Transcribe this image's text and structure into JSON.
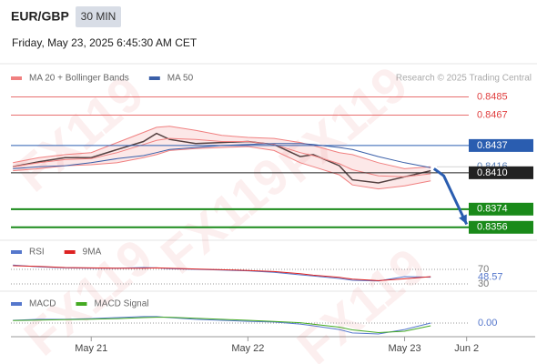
{
  "header": {
    "symbol": "EUR/GBP",
    "timeframe": "30 MIN",
    "date": "Friday, May 23, 2025 6:45:30 AM CET",
    "credit": "Research © 2025 Trading Central",
    "watermark": "FX119"
  },
  "chart_data": [
    {
      "type": "line",
      "x": [
        -12,
        -8,
        -4,
        0,
        4,
        8,
        10,
        12,
        16,
        20,
        24,
        28,
        32,
        34,
        38,
        40,
        44,
        48,
        52
      ],
      "xlim": [
        -12.3,
        68
      ],
      "ylim": [
        0.8345,
        0.8518
      ],
      "series": [
        {
          "color": "#333333",
          "values": [
            0.8416,
            0.8421,
            0.8425,
            0.8425,
            0.8433,
            0.8441,
            0.8449,
            0.8443,
            0.8439,
            0.844,
            0.8441,
            0.8438,
            0.8426,
            0.8428,
            0.8417,
            0.8403,
            0.84,
            0.8406,
            0.8412
          ]
        },
        {
          "name": "MA 20 + Bollinger Bands",
          "color": "#f08080",
          "values": [
            0.8416,
            0.842,
            0.8423,
            0.8424,
            0.843,
            0.8438,
            0.8442,
            0.8444,
            0.8443,
            0.8441,
            0.8441,
            0.8438,
            0.843,
            0.8427,
            0.8419,
            0.8413,
            0.8407,
            0.8406,
            0.8409
          ],
          "upper": [
            0.842,
            0.8425,
            0.8428,
            0.843,
            0.844,
            0.845,
            0.8455,
            0.8456,
            0.8452,
            0.8447,
            0.8445,
            0.8444,
            0.844,
            0.8437,
            0.843,
            0.8428,
            0.842,
            0.8414,
            0.8416
          ],
          "lower": [
            0.8412,
            0.8414,
            0.8417,
            0.8418,
            0.842,
            0.8425,
            0.8428,
            0.8432,
            0.8434,
            0.8435,
            0.8436,
            0.8432,
            0.842,
            0.8416,
            0.8408,
            0.8398,
            0.8394,
            0.8397,
            0.8402
          ]
        },
        {
          "name": "MA 50",
          "color": "#3a5fa8",
          "values": [
            0.8414,
            0.8416,
            0.8417,
            0.842,
            0.8424,
            0.8427,
            0.843,
            0.8433,
            0.8435,
            0.8437,
            0.8438,
            0.8439,
            0.8439,
            0.8438,
            0.8435,
            0.8433,
            0.8426,
            0.842,
            0.8415
          ]
        }
      ],
      "levels": [
        {
          "value": 0.8485,
          "color": "#e04040",
          "style": "line"
        },
        {
          "value": 0.8467,
          "color": "#e04040",
          "style": "line"
        },
        {
          "value": 0.8437,
          "color": "#2a5db0",
          "style": "box"
        },
        {
          "value": 0.8416,
          "color": "#5a7fb5",
          "style": "text"
        },
        {
          "value": 0.841,
          "label": "0.8410",
          "color": "#222222",
          "style": "box"
        },
        {
          "value": 0.8374,
          "color": "#1a8a1a",
          "style": "box"
        },
        {
          "value": 0.8356,
          "color": "#1a8a1a",
          "style": "box"
        }
      ],
      "forecast": {
        "x": [
          52.5,
          54,
          57.5
        ],
        "values": [
          0.8414,
          0.8407,
          0.8359
        ],
        "color": "#2a5db0"
      }
    },
    {
      "type": "line",
      "x": [
        -12,
        -8,
        -4,
        0,
        4,
        8,
        10,
        12,
        16,
        20,
        24,
        28,
        32,
        34,
        38,
        40,
        44,
        48,
        52
      ],
      "xlim": [
        -12.3,
        68
      ],
      "ylim": [
        15,
        97.5
      ],
      "yticks": [
        30,
        70
      ],
      "series": [
        {
          "name": "RSI",
          "color": "#5577cc",
          "values": [
            82,
            77,
            74,
            73,
            73,
            75,
            74,
            72,
            70,
            68,
            66,
            62,
            55,
            52,
            45,
            40,
            38,
            50,
            48.57
          ]
        },
        {
          "name": "9MA",
          "color": "#dd2222",
          "values": [
            80,
            78,
            75,
            74,
            73,
            73,
            74,
            73,
            71,
            69,
            67,
            64,
            58,
            54,
            48,
            43,
            39,
            44,
            50
          ]
        }
      ]
    },
    {
      "type": "line",
      "x": [
        -12,
        -8,
        -4,
        0,
        4,
        8,
        10,
        12,
        16,
        20,
        24,
        28,
        32,
        34,
        38,
        40,
        44,
        48,
        52
      ],
      "xlim": [
        -12.3,
        68
      ],
      "ylim": [
        -0.001,
        0.002
      ],
      "yticks": [
        {
          "value": 0,
          "label": "0.00"
        }
      ],
      "xticks": [
        {
          "value": 0,
          "label": "May 21"
        },
        {
          "value": 24,
          "label": "May 22"
        },
        {
          "value": 48,
          "label": "May 23"
        },
        {
          "value": 57.5,
          "label": "Jun 2"
        }
      ],
      "series": [
        {
          "name": "MACD",
          "color": "#5577cc",
          "values": [
            0.0002,
            0.00027,
            0.00027,
            0.00033,
            0.0004,
            0.00047,
            0.00047,
            0.0004,
            0.00027,
            0.0002,
            0.00013,
            7e-05,
            -7e-05,
            -0.0002,
            -0.00047,
            -0.00073,
            -0.0008,
            -0.00047,
            0
          ]
        },
        {
          "name": "MACD Signal",
          "color": "#44aa22",
          "values": [
            0.00018,
            0.00022,
            0.00025,
            0.00028,
            0.00033,
            0.0004,
            0.00043,
            0.00043,
            0.00035,
            0.00027,
            0.0002,
            0.00012,
            3e-05,
            -8e-05,
            -0.0003,
            -0.0005,
            -0.0007,
            -0.0006,
            -0.0002
          ]
        }
      ]
    }
  ]
}
